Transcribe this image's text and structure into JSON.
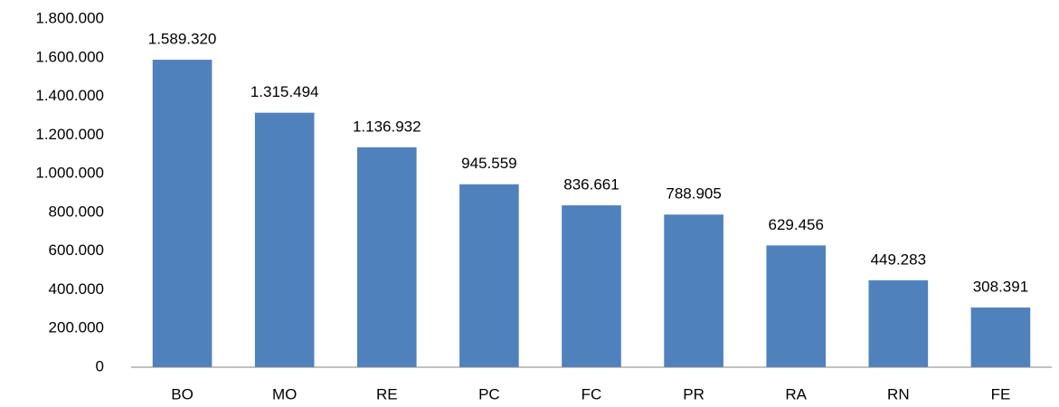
{
  "chart_data": {
    "type": "bar",
    "categories": [
      "BO",
      "MO",
      "RE",
      "PC",
      "FC",
      "PR",
      "RA",
      "RN",
      "FE"
    ],
    "values": [
      1589320,
      1315494,
      1136932,
      945559,
      836661,
      788905,
      629456,
      449283,
      308391
    ],
    "value_labels": [
      "1.589.320",
      "1.315.494",
      "1.136.932",
      "945.559",
      "836.661",
      "788.905",
      "629.456",
      "449.283",
      "308.391"
    ],
    "color": "#4f81bd",
    "ylim": [
      0,
      1800000
    ],
    "yticks": [
      0,
      {
        "value": 200000,
        "label": "200.000"
      },
      {
        "value": 400000,
        "label": "400.000"
      },
      {
        "value": 600000,
        "label": "600.000"
      },
      {
        "value": 800000,
        "label": "800.000"
      },
      {
        "value": 1000000,
        "label": "1.000.000"
      },
      {
        "value": 1200000,
        "label": "1.200.000"
      },
      {
        "value": 1400000,
        "label": "1.400.000"
      },
      {
        "value": 1600000,
        "label": "1.600.000"
      },
      {
        "value": 1800000,
        "label": "1.800.000"
      }
    ],
    "grid": false
  }
}
